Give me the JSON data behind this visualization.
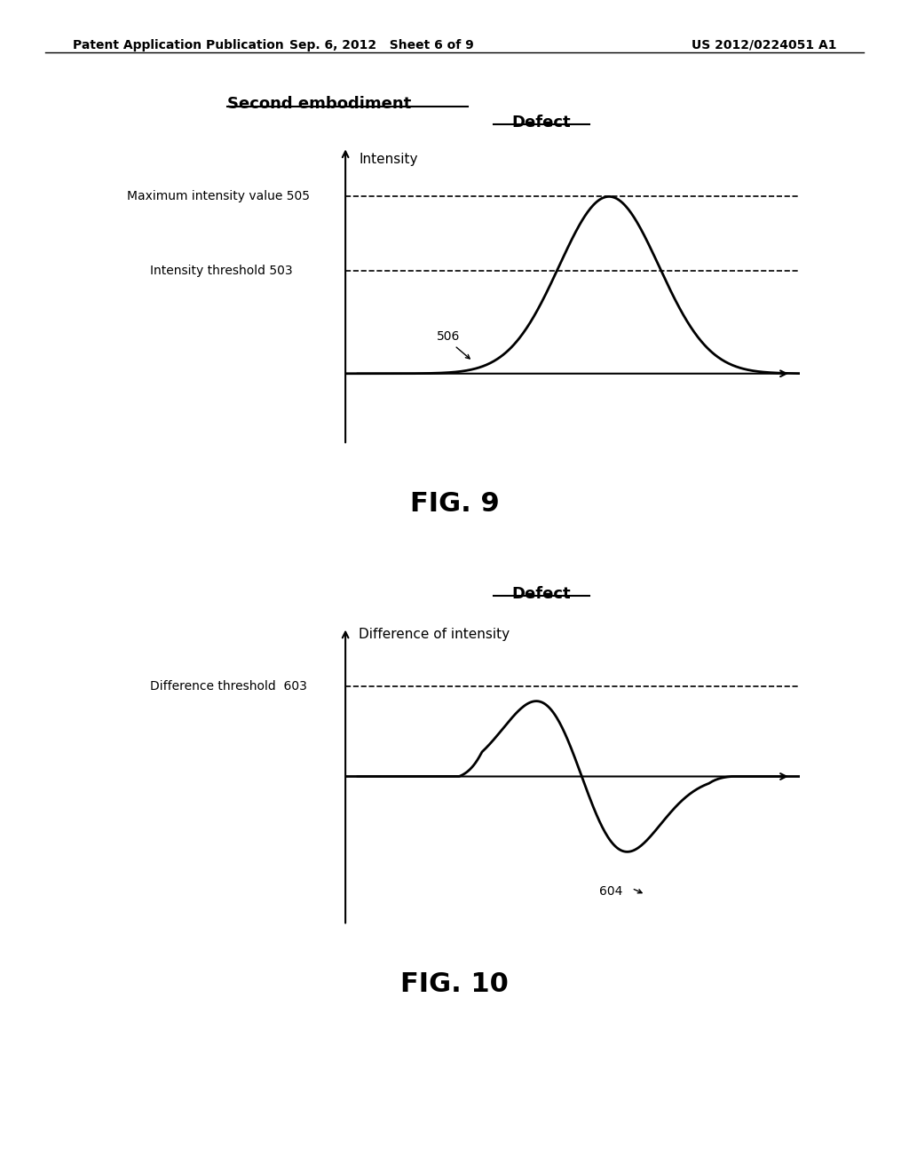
{
  "bg_color": "#ffffff",
  "header_left": "Patent Application Publication",
  "header_mid": "Sep. 6, 2012   Sheet 6 of 9",
  "header_right": "US 2012/0224051 A1",
  "fig9_label": "FIG. 9",
  "fig10_label": "FIG. 10",
  "second_embodiment": "Second embodiment",
  "defect_label_9": "Defect",
  "defect_label_10": "Defect",
  "intensity_ylabel": "Intensity",
  "diff_ylabel": "Difference of intensity",
  "max_intensity_label": "Maximum intensity value 505",
  "intensity_threshold_label": "Intensity threshold 503",
  "label_506": "506",
  "diff_threshold_label": "Difference threshold  603",
  "label_604": "604"
}
